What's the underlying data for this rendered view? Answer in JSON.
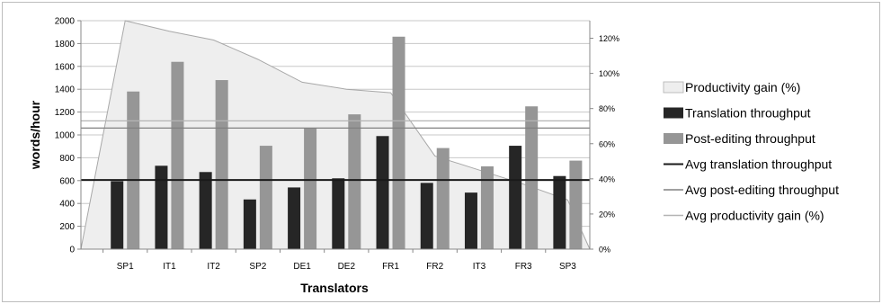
{
  "chart_data": {
    "type": "bar",
    "title": "",
    "xlabel": "Translators",
    "ylabel": "words/hour",
    "categories": [
      "SP1",
      "IT1",
      "IT2",
      "SP2",
      "DE1",
      "DE2",
      "FR1",
      "FR2",
      "IT3",
      "FR3",
      "SP3"
    ],
    "ylim": [
      0,
      2000
    ],
    "yticks": [
      "0",
      "200",
      "400",
      "600",
      "800",
      "1000",
      "1200",
      "1400",
      "1600",
      "1800",
      "2000"
    ],
    "y2lim": [
      0,
      130
    ],
    "y2ticks": [
      "0%",
      "20%",
      "40%",
      "60%",
      "80%",
      "100%",
      "120%"
    ],
    "series": [
      {
        "name": "Productivity gain (%)",
        "kind": "area",
        "axis": "right",
        "color": "#eeeeee",
        "values": [
          130,
          124,
          119,
          108,
          95,
          91,
          89,
          53,
          45,
          37,
          28
        ]
      },
      {
        "name": "Translation throughput",
        "kind": "bar",
        "axis": "left",
        "color": "#262626",
        "values": [
          595,
          730,
          675,
          435,
          540,
          620,
          990,
          580,
          495,
          905,
          640
        ]
      },
      {
        "name": "Post-editing throughput",
        "kind": "bar",
        "axis": "left",
        "color": "#969696",
        "values": [
          1380,
          1640,
          1480,
          905,
          1060,
          1180,
          1860,
          885,
          725,
          1250,
          775
        ]
      }
    ],
    "reference_lines": [
      {
        "name": "Avg translation throughput",
        "value": 605,
        "axis": "left",
        "color": "#1a1a1a"
      },
      {
        "name": "Avg post-editing throughput",
        "value": 1060,
        "axis": "left",
        "color": "#808080"
      },
      {
        "name": "Avg  productivity gain (%)",
        "value": 73,
        "axis": "right",
        "color": "#b4b4b4"
      }
    ],
    "grid": true,
    "legend_position": "right"
  }
}
